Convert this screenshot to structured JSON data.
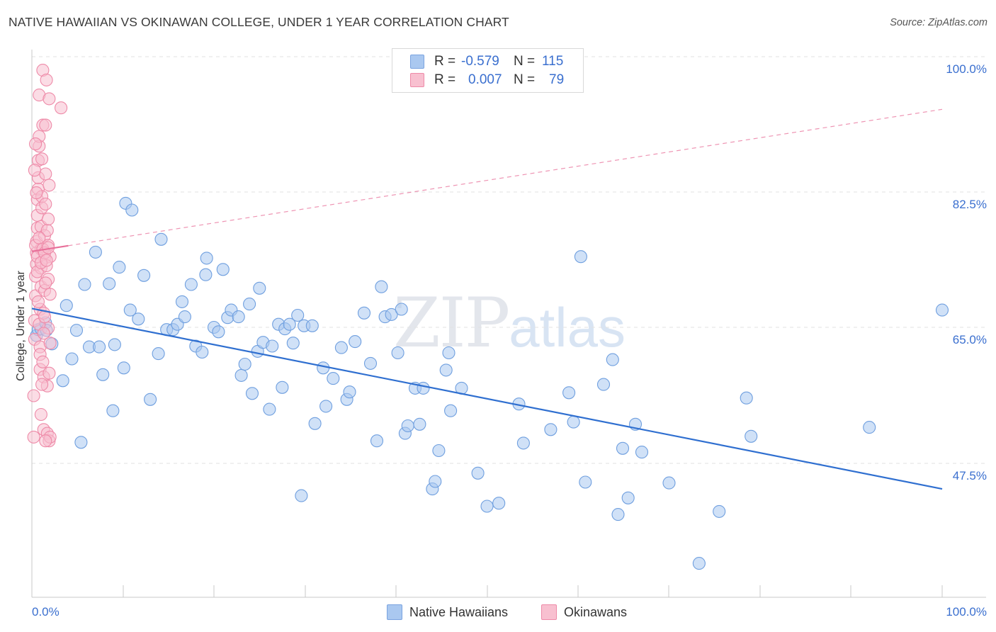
{
  "title": "NATIVE HAWAIIAN VS OKINAWAN COLLEGE, UNDER 1 YEAR CORRELATION CHART",
  "source": "Source: ZipAtlas.com",
  "watermark": {
    "zip": "ZIP",
    "atlas": "atlas"
  },
  "legend": {
    "rows": [
      {
        "r_label": "R =",
        "r_value": "-0.579",
        "n_label": "N =",
        "n_value": "115",
        "color": "#aac8f0",
        "border": "#7aa3e0"
      },
      {
        "r_label": "R =",
        "r_value": "0.007",
        "n_label": "N =",
        "n_value": "79",
        "color": "#f8c0d0",
        "border": "#ee8aa8"
      }
    ]
  },
  "bottom_legend": [
    {
      "label": "Native Hawaiians",
      "color": "#aac8f0",
      "border": "#7aa3e0"
    },
    {
      "label": "Okinawans",
      "color": "#f8c0d0",
      "border": "#ee8aa8"
    }
  ],
  "chart_data": {
    "type": "scatter",
    "title": "NATIVE HAWAIIAN VS OKINAWAN COLLEGE, UNDER 1 YEAR CORRELATION CHART",
    "xlabel": "",
    "ylabel": "College, Under 1 year",
    "xlim": [
      0,
      100
    ],
    "ylim": [
      30,
      100
    ],
    "x_tick_labels": [
      {
        "value": 0,
        "label": "0.0%"
      },
      {
        "value": 100,
        "label": "100.0%"
      }
    ],
    "y_tick_labels": [
      {
        "value": 100,
        "label": "100.0%"
      },
      {
        "value": 82.5,
        "label": "82.5%"
      },
      {
        "value": 65,
        "label": "65.0%"
      },
      {
        "value": 47.5,
        "label": "47.5%"
      }
    ],
    "y_grid": [
      100,
      82.5,
      65,
      47.5
    ],
    "x_minor_ticks": [
      10,
      20,
      30,
      40,
      50,
      60,
      70,
      80,
      90,
      100
    ],
    "series": [
      {
        "name": "Native Hawaiians",
        "color": "#aac8f0",
        "edge": "#6f9fdf",
        "trend": {
          "x": [
            0,
            100
          ],
          "y": [
            68.1,
            44.1
          ],
          "color": "#2f6fd0",
          "style": "solid"
        },
        "points": [
          [
            0.5,
            64.5
          ],
          [
            0.7,
            65.3
          ],
          [
            1.0,
            65.4
          ],
          [
            1.5,
            66.2
          ],
          [
            1.6,
            65.2
          ],
          [
            2.2,
            63.4
          ],
          [
            3.4,
            58.5
          ],
          [
            3.8,
            68.5
          ],
          [
            4.4,
            61.4
          ],
          [
            4.9,
            65.2
          ],
          [
            5.4,
            50.3
          ],
          [
            5.8,
            71.3
          ],
          [
            6.3,
            63.0
          ],
          [
            7.0,
            75.6
          ],
          [
            7.4,
            63.0
          ],
          [
            7.8,
            59.3
          ],
          [
            8.5,
            71.4
          ],
          [
            8.9,
            54.5
          ],
          [
            9.1,
            63.3
          ],
          [
            9.6,
            73.6
          ],
          [
            10.1,
            60.2
          ],
          [
            10.3,
            82.1
          ],
          [
            10.8,
            67.9
          ],
          [
            11.0,
            81.2
          ],
          [
            11.7,
            66.7
          ],
          [
            12.3,
            72.5
          ],
          [
            13.0,
            56.0
          ],
          [
            13.9,
            62.1
          ],
          [
            14.2,
            77.3
          ],
          [
            14.8,
            65.3
          ],
          [
            15.5,
            65.3
          ],
          [
            16.0,
            66.0
          ],
          [
            16.5,
            69.0
          ],
          [
            16.8,
            67.0
          ],
          [
            17.5,
            71.3
          ],
          [
            18.0,
            63.1
          ],
          [
            18.7,
            62.3
          ],
          [
            19.1,
            72.6
          ],
          [
            19.2,
            74.8
          ],
          [
            20.0,
            65.6
          ],
          [
            20.5,
            65.0
          ],
          [
            21.0,
            73.3
          ],
          [
            21.5,
            66.9
          ],
          [
            21.9,
            67.9
          ],
          [
            22.7,
            67.0
          ],
          [
            23.0,
            59.2
          ],
          [
            23.4,
            60.7
          ],
          [
            23.9,
            68.7
          ],
          [
            24.2,
            56.8
          ],
          [
            24.8,
            62.4
          ],
          [
            25.0,
            70.8
          ],
          [
            25.4,
            63.6
          ],
          [
            26.1,
            54.7
          ],
          [
            26.4,
            63.1
          ],
          [
            27.1,
            66.0
          ],
          [
            27.5,
            57.6
          ],
          [
            27.8,
            65.4
          ],
          [
            28.3,
            66.0
          ],
          [
            28.7,
            63.5
          ],
          [
            29.2,
            67.2
          ],
          [
            29.6,
            43.2
          ],
          [
            29.9,
            65.8
          ],
          [
            30.8,
            65.8
          ],
          [
            31.1,
            52.8
          ],
          [
            32.0,
            60.2
          ],
          [
            32.3,
            55.1
          ],
          [
            33.1,
            58.8
          ],
          [
            34.0,
            62.9
          ],
          [
            34.6,
            56.0
          ],
          [
            34.9,
            57.0
          ],
          [
            35.5,
            63.7
          ],
          [
            36.5,
            67.5
          ],
          [
            37.2,
            60.8
          ],
          [
            37.9,
            50.5
          ],
          [
            38.4,
            71.0
          ],
          [
            38.8,
            67.0
          ],
          [
            39.5,
            67.3
          ],
          [
            40.2,
            62.2
          ],
          [
            40.6,
            68.0
          ],
          [
            41.0,
            51.5
          ],
          [
            41.3,
            52.5
          ],
          [
            42.1,
            57.5
          ],
          [
            42.6,
            52.7
          ],
          [
            43.0,
            57.5
          ],
          [
            44.0,
            44.1
          ],
          [
            44.3,
            45.1
          ],
          [
            44.7,
            49.2
          ],
          [
            45.5,
            59.9
          ],
          [
            45.8,
            62.2
          ],
          [
            46.0,
            54.5
          ],
          [
            47.2,
            57.5
          ],
          [
            49.0,
            46.2
          ],
          [
            50.0,
            41.8
          ],
          [
            51.3,
            42.2
          ],
          [
            53.5,
            55.4
          ],
          [
            54.0,
            50.2
          ],
          [
            57.0,
            52.0
          ],
          [
            59.0,
            56.9
          ],
          [
            59.5,
            53.0
          ],
          [
            60.3,
            75.0
          ],
          [
            60.8,
            45.0
          ],
          [
            62.8,
            58.0
          ],
          [
            63.8,
            61.3
          ],
          [
            64.4,
            40.7
          ],
          [
            64.9,
            49.5
          ],
          [
            65.5,
            42.9
          ],
          [
            66.3,
            52.7
          ],
          [
            67.0,
            49.0
          ],
          [
            70.0,
            44.9
          ],
          [
            73.3,
            34.2
          ],
          [
            75.5,
            41.1
          ],
          [
            78.5,
            56.2
          ],
          [
            79.0,
            51.1
          ],
          [
            92.0,
            52.3
          ],
          [
            100.0,
            67.9
          ]
        ]
      },
      {
        "name": "Okinawans",
        "color": "#f8c0d0",
        "edge": "#ee8aa8",
        "trend": {
          "x": [
            0,
            100
          ],
          "y": [
            75.7,
            94.6
          ],
          "color": "#e8709a",
          "style": "dashed",
          "solid_until": 4
        },
        "points": [
          [
            0.2,
            51.0
          ],
          [
            0.2,
            56.5
          ],
          [
            0.3,
            64.0
          ],
          [
            0.3,
            66.5
          ],
          [
            0.4,
            69.8
          ],
          [
            0.4,
            72.4
          ],
          [
            0.5,
            74.0
          ],
          [
            0.5,
            75.5
          ],
          [
            0.5,
            77.0
          ],
          [
            0.6,
            78.8
          ],
          [
            0.6,
            80.5
          ],
          [
            0.6,
            82.6
          ],
          [
            0.7,
            84.0
          ],
          [
            0.7,
            85.5
          ],
          [
            0.7,
            87.8
          ],
          [
            0.8,
            89.7
          ],
          [
            0.8,
            91.0
          ],
          [
            0.8,
            96.5
          ],
          [
            0.9,
            60.0
          ],
          [
            0.9,
            63.0
          ],
          [
            0.9,
            68.0
          ],
          [
            1.0,
            71.0
          ],
          [
            1.0,
            73.5
          ],
          [
            1.0,
            76.0
          ],
          [
            1.0,
            79.0
          ],
          [
            1.1,
            81.5
          ],
          [
            1.1,
            83.0
          ],
          [
            1.1,
            88.0
          ],
          [
            1.2,
            92.5
          ],
          [
            1.2,
            99.8
          ],
          [
            1.3,
            52.0
          ],
          [
            1.3,
            59.0
          ],
          [
            1.3,
            67.5
          ],
          [
            1.4,
            70.5
          ],
          [
            1.4,
            74.8
          ],
          [
            1.4,
            77.8
          ],
          [
            1.5,
            82.0
          ],
          [
            1.5,
            86.0
          ],
          [
            1.5,
            92.5
          ],
          [
            1.6,
            98.5
          ],
          [
            1.7,
            51.5
          ],
          [
            1.7,
            57.8
          ],
          [
            1.8,
            65.5
          ],
          [
            1.8,
            72.0
          ],
          [
            1.8,
            76.5
          ],
          [
            1.9,
            50.5
          ],
          [
            1.9,
            59.5
          ],
          [
            2.0,
            63.5
          ],
          [
            2.0,
            70.0
          ],
          [
            2.0,
            75.0
          ],
          [
            0.3,
            86.5
          ],
          [
            0.4,
            90.0
          ],
          [
            0.5,
            83.5
          ],
          [
            0.6,
            73.0
          ],
          [
            0.7,
            69.0
          ],
          [
            0.8,
            66.0
          ],
          [
            0.9,
            62.0
          ],
          [
            1.0,
            54.0
          ],
          [
            1.1,
            58.0
          ],
          [
            1.2,
            61.0
          ],
          [
            1.3,
            64.8
          ],
          [
            1.4,
            67.0
          ],
          [
            1.5,
            71.5
          ],
          [
            1.6,
            73.8
          ],
          [
            1.7,
            78.5
          ],
          [
            1.8,
            80.0
          ],
          [
            1.9,
            84.5
          ],
          [
            0.4,
            76.5
          ],
          [
            0.6,
            75.0
          ],
          [
            0.8,
            77.5
          ],
          [
            1.0,
            74.2
          ],
          [
            1.2,
            76.0
          ],
          [
            1.4,
            75.5
          ],
          [
            1.6,
            74.5
          ],
          [
            1.8,
            76.2
          ],
          [
            2.0,
            51.0
          ],
          [
            1.5,
            50.5
          ],
          [
            1.9,
            96.0
          ],
          [
            3.2,
            94.8
          ]
        ]
      }
    ]
  }
}
